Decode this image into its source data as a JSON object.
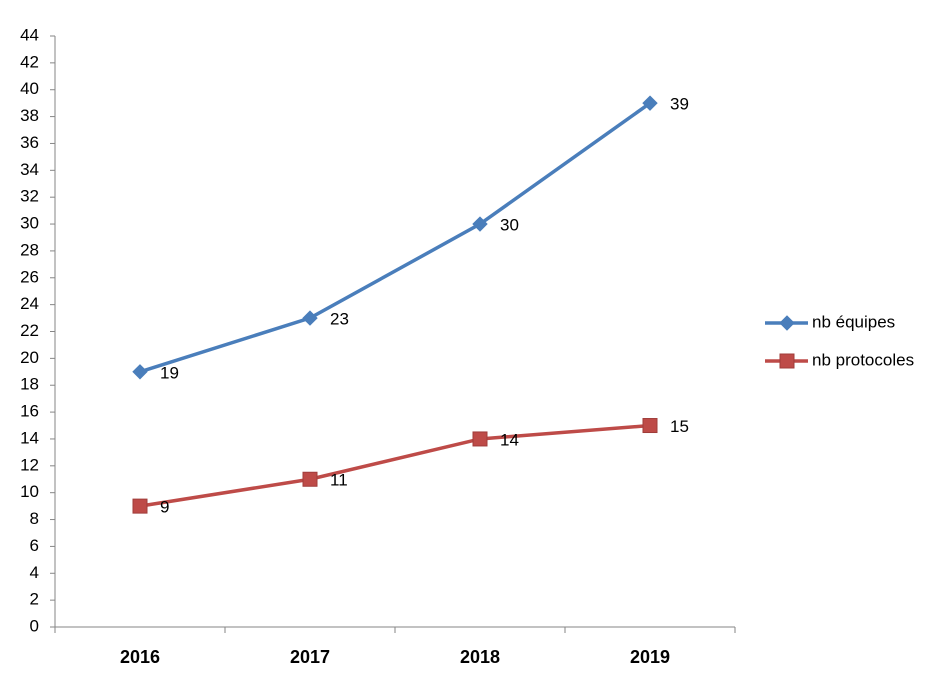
{
  "chart_data": {
    "type": "line",
    "categories": [
      "2016",
      "2017",
      "2018",
      "2019"
    ],
    "series": [
      {
        "name": "nb équipes",
        "color": "#4a7ebb",
        "marker": "diamond",
        "values": [
          19,
          23,
          30,
          39
        ]
      },
      {
        "name": "nb protocoles",
        "color": "#be4b48",
        "marker": "square",
        "values": [
          9,
          11,
          14,
          15
        ]
      }
    ],
    "ylim": [
      0,
      44
    ],
    "yticks": [
      0,
      2,
      4,
      6,
      8,
      10,
      12,
      14,
      16,
      18,
      20,
      22,
      24,
      26,
      28,
      30,
      32,
      34,
      36,
      38,
      40,
      42,
      44
    ],
    "grid": false,
    "legend": "right",
    "data_labels": true
  }
}
